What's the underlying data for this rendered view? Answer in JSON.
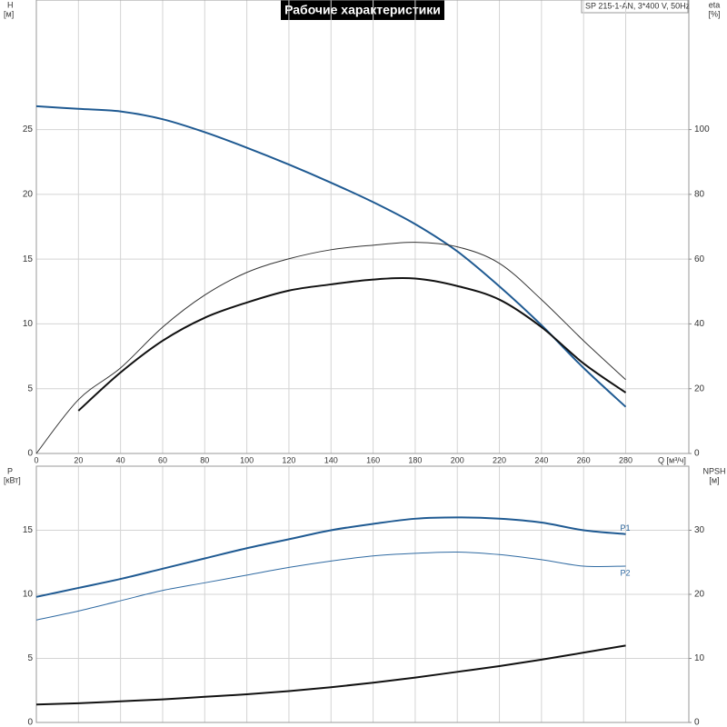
{
  "chart_data": [
    {
      "type": "line",
      "title": "Рабочие характеристики",
      "subtitle": "SP 215-1-AN, 3*400 V, 50Hz",
      "ylabel": "H",
      "yunit": "[м]",
      "y2label": "eta",
      "y2unit": "[%]",
      "xlabel": "Q [м³/ч]",
      "x": [
        0,
        20,
        40,
        60,
        80,
        100,
        120,
        140,
        160,
        180,
        200,
        220,
        240,
        260,
        280
      ],
      "xlim": [
        0,
        310
      ],
      "xticks": [
        0,
        20,
        40,
        60,
        80,
        100,
        120,
        140,
        160,
        180,
        200,
        220,
        240,
        260,
        280
      ],
      "ylim": [
        0,
        35
      ],
      "yticks": [
        0,
        5,
        10,
        15,
        20,
        25
      ],
      "y2lim": [
        0,
        140
      ],
      "y2ticks": [
        0,
        20,
        40,
        60,
        80,
        100
      ],
      "grid": true,
      "series": [
        {
          "color": "#1f5a92",
          "linewidth": 2,
          "values": [
            26.8,
            26.6,
            26.4,
            25.8,
            24.8,
            23.6,
            22.3,
            20.9,
            19.4,
            17.7,
            15.6,
            12.9,
            9.9,
            6.6,
            3.6
          ]
        },
        {
          "color": "#333333",
          "linewidth": 1,
          "axis": "y2",
          "values": [
            0,
            16.6,
            26.4,
            39,
            48.9,
            55.9,
            60.1,
            62.9,
            64.3,
            65.2,
            63.8,
            58.7,
            47.5,
            34.8,
            22.8
          ]
        },
        {
          "color": "#111111",
          "linewidth": 2,
          "axis": "y2",
          "values": [
            null,
            13.2,
            25,
            34.8,
            41.9,
            46.6,
            50.3,
            52.2,
            53.7,
            54,
            51.7,
            47.5,
            39,
            27.8,
            18.8
          ]
        }
      ]
    },
    {
      "type": "line",
      "ylabel": "P",
      "yunit": "[кВт]",
      "y2label": "NPSH",
      "y2unit": "[м]",
      "x": [
        0,
        20,
        40,
        60,
        80,
        100,
        120,
        140,
        160,
        180,
        200,
        220,
        240,
        260,
        280
      ],
      "xlim": [
        0,
        310
      ],
      "ylim": [
        0,
        20
      ],
      "yticks": [
        0,
        5,
        10,
        15
      ],
      "y2lim": [
        0,
        40
      ],
      "y2ticks": [
        0,
        10,
        20,
        30
      ],
      "grid": true,
      "series": [
        {
          "name": "P1",
          "color": "#1f5a92",
          "linewidth": 2,
          "values": [
            9.8,
            10.5,
            11.2,
            12.0,
            12.8,
            13.6,
            14.3,
            15.0,
            15.5,
            15.9,
            16.0,
            15.9,
            15.6,
            15.0,
            14.7
          ]
        },
        {
          "name": "P2",
          "color": "#2f6aa2",
          "linewidth": 1,
          "values": [
            8.0,
            8.7,
            9.5,
            10.3,
            10.9,
            11.5,
            12.1,
            12.6,
            13.0,
            13.2,
            13.3,
            13.1,
            12.7,
            12.2,
            12.2
          ]
        },
        {
          "color": "#111111",
          "linewidth": 2,
          "axis": "y2",
          "values": [
            2.8,
            3.0,
            3.3,
            3.6,
            4.0,
            4.4,
            4.9,
            5.5,
            6.2,
            7.0,
            7.9,
            8.8,
            9.8,
            10.9,
            12.0
          ]
        }
      ]
    }
  ]
}
